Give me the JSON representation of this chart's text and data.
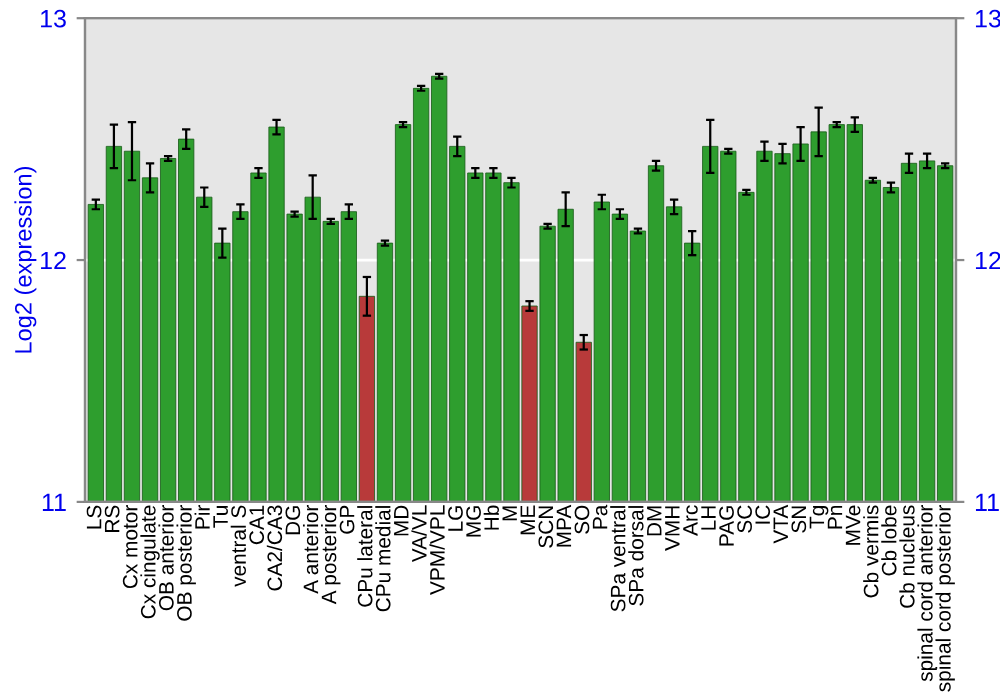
{
  "chart_data": {
    "type": "bar",
    "ylabel": "Log2 (expression)",
    "categories": [
      "LS",
      "RS",
      "Cx motor",
      "Cx cingulate",
      "OB anterior",
      "OB posterior",
      "Pir",
      "Tu",
      "ventral S",
      "CA1",
      "CA2/CA3",
      "DG",
      "A anterior",
      "A posterior",
      "GP",
      "CPu lateral",
      "CPu medial",
      "MD",
      "VA/VL",
      "VPM/VPL",
      "LG",
      "MG",
      "Hb",
      "M",
      "ME",
      "SCN",
      "MPA",
      "SO",
      "Pa",
      "SPa ventral",
      "SPa dorsal",
      "DM",
      "VMH",
      "Arc",
      "LH",
      "PAG",
      "SC",
      "IC",
      "VTA",
      "SN",
      "Tg",
      "Pn",
      "MVe",
      "Cb vermis",
      "Cb lobe",
      "Cb nucleus",
      "spinal cord anterior",
      "spinal cord posterior"
    ],
    "values": [
      12.23,
      12.47,
      12.45,
      12.34,
      12.42,
      12.5,
      12.26,
      12.07,
      12.2,
      12.36,
      12.55,
      12.19,
      12.26,
      12.16,
      12.2,
      11.85,
      12.07,
      12.56,
      12.71,
      12.76,
      12.47,
      12.36,
      12.36,
      12.32,
      11.81,
      12.14,
      12.21,
      11.66,
      12.24,
      12.19,
      12.12,
      12.39,
      12.22,
      12.07,
      12.47,
      12.45,
      12.28,
      12.45,
      12.44,
      12.48,
      12.53,
      12.56,
      12.56,
      12.33,
      12.3,
      12.4,
      12.41,
      12.39
    ],
    "errors": [
      0.02,
      0.09,
      0.12,
      0.06,
      0.01,
      0.04,
      0.04,
      0.06,
      0.03,
      0.02,
      0.03,
      0.01,
      0.09,
      0.01,
      0.03,
      0.08,
      0.01,
      0.01,
      0.01,
      0.01,
      0.04,
      0.02,
      0.02,
      0.02,
      0.02,
      0.01,
      0.07,
      0.03,
      0.03,
      0.02,
      0.01,
      0.02,
      0.03,
      0.05,
      0.11,
      0.01,
      0.01,
      0.04,
      0.04,
      0.07,
      0.1,
      0.01,
      0.03,
      0.01,
      0.02,
      0.04,
      0.03,
      0.01
    ],
    "colors": [
      "#2e9e2e",
      "#2e9e2e",
      "#2e9e2e",
      "#2e9e2e",
      "#2e9e2e",
      "#2e9e2e",
      "#2e9e2e",
      "#2e9e2e",
      "#2e9e2e",
      "#2e9e2e",
      "#2e9e2e",
      "#2e9e2e",
      "#2e9e2e",
      "#2e9e2e",
      "#2e9e2e",
      "#b83a3a",
      "#2e9e2e",
      "#2e9e2e",
      "#2e9e2e",
      "#2e9e2e",
      "#2e9e2e",
      "#2e9e2e",
      "#2e9e2e",
      "#2e9e2e",
      "#b83a3a",
      "#2e9e2e",
      "#2e9e2e",
      "#b83a3a",
      "#2e9e2e",
      "#2e9e2e",
      "#2e9e2e",
      "#2e9e2e",
      "#2e9e2e",
      "#2e9e2e",
      "#2e9e2e",
      "#2e9e2e",
      "#2e9e2e",
      "#2e9e2e",
      "#2e9e2e",
      "#2e9e2e",
      "#2e9e2e",
      "#2e9e2e",
      "#2e9e2e",
      "#2e9e2e",
      "#2e9e2e",
      "#2e9e2e",
      "#2e9e2e",
      "#2e9e2e"
    ],
    "ylim": [
      11,
      13
    ],
    "yticks": [
      11,
      12,
      13
    ],
    "y2lim": [
      11,
      13
    ],
    "y2ticks": [
      11,
      12,
      13
    ],
    "grid": "y"
  }
}
